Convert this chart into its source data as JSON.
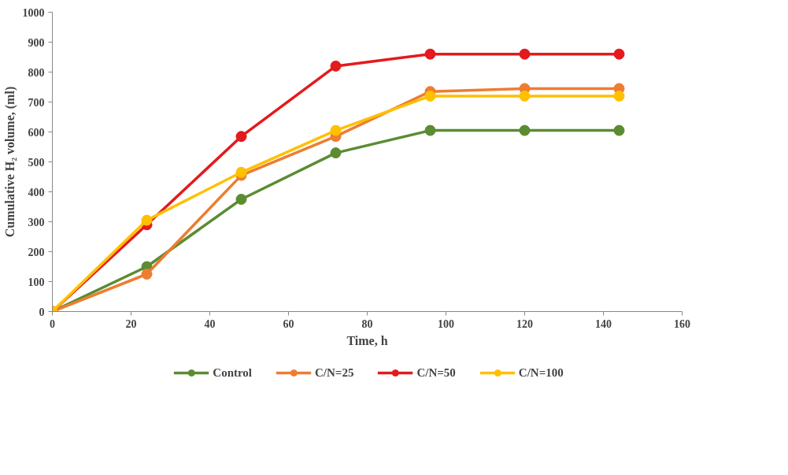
{
  "chart_data": {
    "type": "line",
    "xlabel": "Time, h",
    "ylabel": "Cumulative H₂ volume, (ml)",
    "x": [
      0,
      24,
      48,
      72,
      96,
      120,
      144
    ],
    "xlim": [
      0,
      160
    ],
    "xticks": [
      0,
      20,
      40,
      60,
      80,
      100,
      120,
      140,
      160
    ],
    "ylim": [
      0,
      1000
    ],
    "yticks": [
      0,
      100,
      200,
      300,
      400,
      500,
      600,
      700,
      800,
      900,
      1000
    ],
    "grid": false,
    "legend": "bottom",
    "marker": "circle",
    "line_style": "solid",
    "series": [
      {
        "name": "Control",
        "color": "#5b8c32",
        "values": [
          0,
          150,
          375,
          530,
          605,
          605,
          605
        ]
      },
      {
        "name": "C/N=25",
        "color": "#ed7d31",
        "values": [
          0,
          125,
          455,
          585,
          735,
          745,
          745
        ]
      },
      {
        "name": "C/N=50",
        "color": "#e41a1c",
        "values": [
          0,
          290,
          585,
          820,
          860,
          860,
          860
        ]
      },
      {
        "name": "C/N=100",
        "color": "#ffc000",
        "values": [
          0,
          305,
          465,
          605,
          720,
          720,
          720
        ]
      }
    ]
  }
}
